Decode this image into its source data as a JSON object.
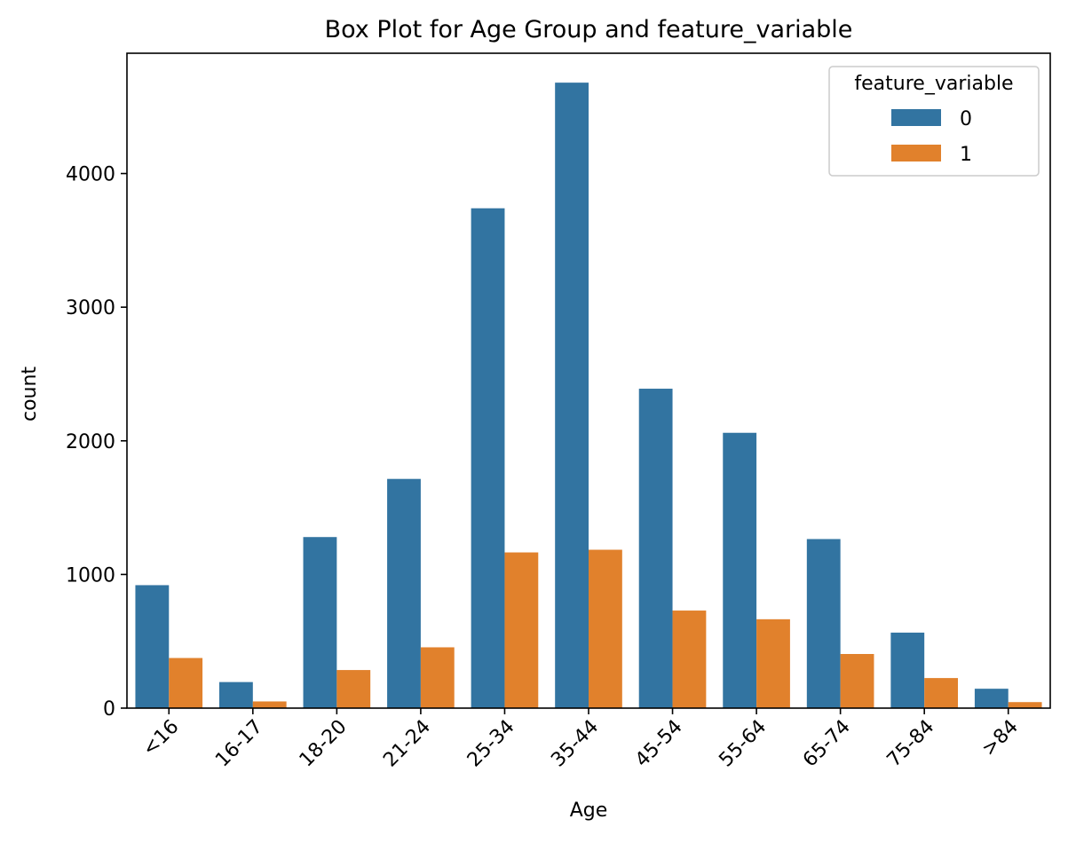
{
  "chart_data": {
    "type": "bar",
    "title": "Box Plot for Age Group and feature_variable",
    "xlabel": "Age",
    "ylabel": "count",
    "categories": [
      "<16",
      "16-17",
      "18-20",
      "21-24",
      "25-34",
      "35-44",
      "45-54",
      "55-64",
      "65-74",
      "75-84",
      ">84"
    ],
    "y_ticks": [
      "0",
      "1000",
      "2000",
      "3000",
      "4000"
    ],
    "ylim": [
      0,
      4900
    ],
    "grid": false,
    "legend": {
      "title": "feature_variable",
      "placement": "top-right"
    },
    "series": [
      {
        "name": "0",
        "color": "#3274a1",
        "values": [
          920,
          195,
          1280,
          1715,
          3740,
          4680,
          2390,
          2060,
          1265,
          565,
          145
        ]
      },
      {
        "name": "1",
        "color": "#e1812c",
        "values": [
          375,
          50,
          285,
          455,
          1165,
          1185,
          730,
          665,
          405,
          225,
          45
        ]
      }
    ]
  }
}
